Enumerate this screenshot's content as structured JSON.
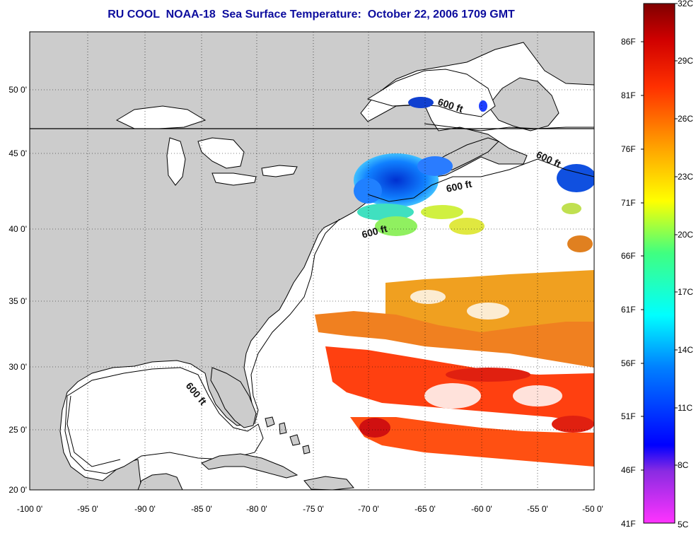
{
  "title": "RU COOL  NOAA-18  Sea Surface Temperature:  October 22, 2006 1709 GMT",
  "lon_ticks": [
    "-100 0'",
    "-95 0'",
    "-90 0'",
    "-85 0'",
    "-80 0'",
    "-75 0'",
    "-70 0'",
    "-65 0'",
    "-60 0'",
    "-55 0'",
    "-50 0'"
  ],
  "lat_ticks": [
    "50 0'",
    "45 0'",
    "40 0'",
    "35 0'",
    "30 0'",
    "25 0'",
    "20 0'"
  ],
  "contour_labels": [
    "600 ft",
    "600 ft",
    "600 ft",
    "600 ft",
    "600 ft"
  ],
  "colorbar": {
    "fahrenheit": [
      "86F",
      "81F",
      "76F",
      "71F",
      "66F",
      "61F",
      "56F",
      "51F",
      "46F",
      "41F"
    ],
    "celsius": [
      "32C",
      "29C",
      "26C",
      "23C",
      "20C",
      "17C",
      "14C",
      "11C",
      "8C",
      "5C"
    ]
  },
  "colors": {
    "title": "#0d0d9e",
    "land": "#cccccc",
    "no_data": "#ffffff"
  }
}
